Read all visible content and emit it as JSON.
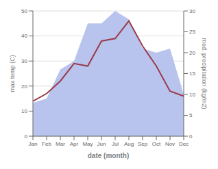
{
  "chart_data": {
    "type": "line",
    "categories": [
      "Jan",
      "Feb",
      "Mar",
      "Apr",
      "May",
      "Jun",
      "Jul",
      "Aug",
      "Sep",
      "Oct",
      "Nov",
      "Dec"
    ],
    "xlabel": "date (month)",
    "ylabel": "max temp (C)",
    "y2label": "med. precipitation (kg/m2)",
    "ylim": [
      0,
      50
    ],
    "yticks": [
      0,
      10,
      20,
      30,
      40,
      50
    ],
    "y2lim": [
      0,
      30
    ],
    "y2ticks": [
      0,
      5,
      10,
      15,
      20,
      25,
      30
    ],
    "grid": true,
    "series": [
      {
        "type": "area",
        "axis": "y2",
        "color": "#b8c4ee",
        "values": [
          8,
          9,
          16,
          18,
          27,
          27,
          30,
          28,
          21,
          20,
          21,
          10
        ]
      },
      {
        "type": "line",
        "color": "#9b3a4a",
        "values": [
          14,
          17,
          22,
          29,
          28,
          38,
          39,
          46,
          36,
          28,
          18,
          16
        ]
      }
    ]
  }
}
